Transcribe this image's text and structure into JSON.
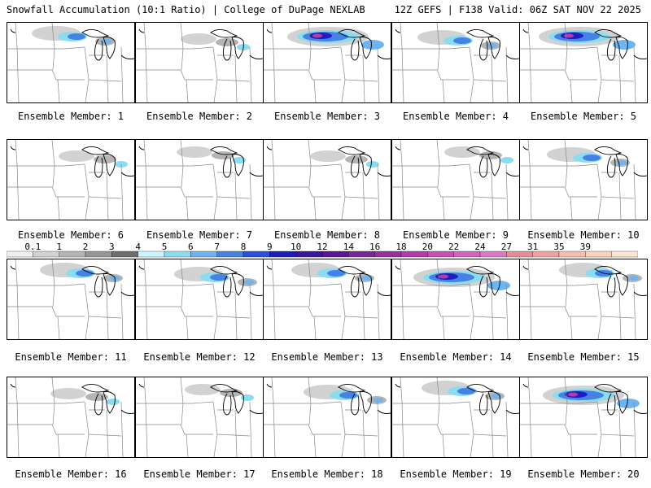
{
  "header": {
    "title": "Snowfall Accumulation (10:1 Ratio) | College of DuPage NEXLAB",
    "run_info": "12Z GEFS | F138 Valid: 06Z SAT NOV 22 2025"
  },
  "panels": [
    {
      "label": "Ensemble Member: 1",
      "intensity": "moderate"
    },
    {
      "label": "Ensemble Member: 2",
      "intensity": "light"
    },
    {
      "label": "Ensemble Member: 3",
      "intensity": "heavy"
    },
    {
      "label": "Ensemble Member: 4",
      "intensity": "moderate"
    },
    {
      "label": "Ensemble Member: 5",
      "intensity": "heavy"
    },
    {
      "label": "Ensemble Member: 6",
      "intensity": "light"
    },
    {
      "label": "Ensemble Member: 7",
      "intensity": "light"
    },
    {
      "label": "Ensemble Member: 8",
      "intensity": "light"
    },
    {
      "label": "Ensemble Member: 9",
      "intensity": "light"
    },
    {
      "label": "Ensemble Member: 10",
      "intensity": "moderate"
    },
    {
      "label": "Ensemble Member: 11",
      "intensity": "moderate"
    },
    {
      "label": "Ensemble Member: 12",
      "intensity": "moderate"
    },
    {
      "label": "Ensemble Member: 13",
      "intensity": "moderate"
    },
    {
      "label": "Ensemble Member: 14",
      "intensity": "heavy"
    },
    {
      "label": "Ensemble Member: 15",
      "intensity": "moderate"
    },
    {
      "label": "Ensemble Member: 16",
      "intensity": "light"
    },
    {
      "label": "Ensemble Member: 17",
      "intensity": "light"
    },
    {
      "label": "Ensemble Member: 18",
      "intensity": "moderate"
    },
    {
      "label": "Ensemble Member: 19",
      "intensity": "moderate"
    },
    {
      "label": "Ensemble Member: 20",
      "intensity": "heavy"
    }
  ],
  "colorbar": {
    "labels": [
      "0.1",
      "1",
      "2",
      "3",
      "4",
      "5",
      "6",
      "7",
      "8",
      "9",
      "10",
      "12",
      "14",
      "16",
      "18",
      "20",
      "22",
      "24",
      "27",
      "31",
      "35",
      "39"
    ],
    "colors": [
      "#f0f0f0",
      "#d2d2d2",
      "#b4b4b4",
      "#969696",
      "#6e6e6e",
      "#c8f5ff",
      "#8cdcf0",
      "#6eb4f0",
      "#4682e6",
      "#2850dc",
      "#1e1ebe",
      "#3c14a0",
      "#5a1496",
      "#782896",
      "#9632a0",
      "#b43caa",
      "#c850b4",
      "#d264be",
      "#dc78c8",
      "#e68c96",
      "#f0a0a0",
      "#f5beaa",
      "#fad2be",
      "#fce6d2"
    ]
  },
  "colors": {
    "state_lines": "#888888",
    "coast_lines": "#000000",
    "panel_border": "#000000"
  }
}
